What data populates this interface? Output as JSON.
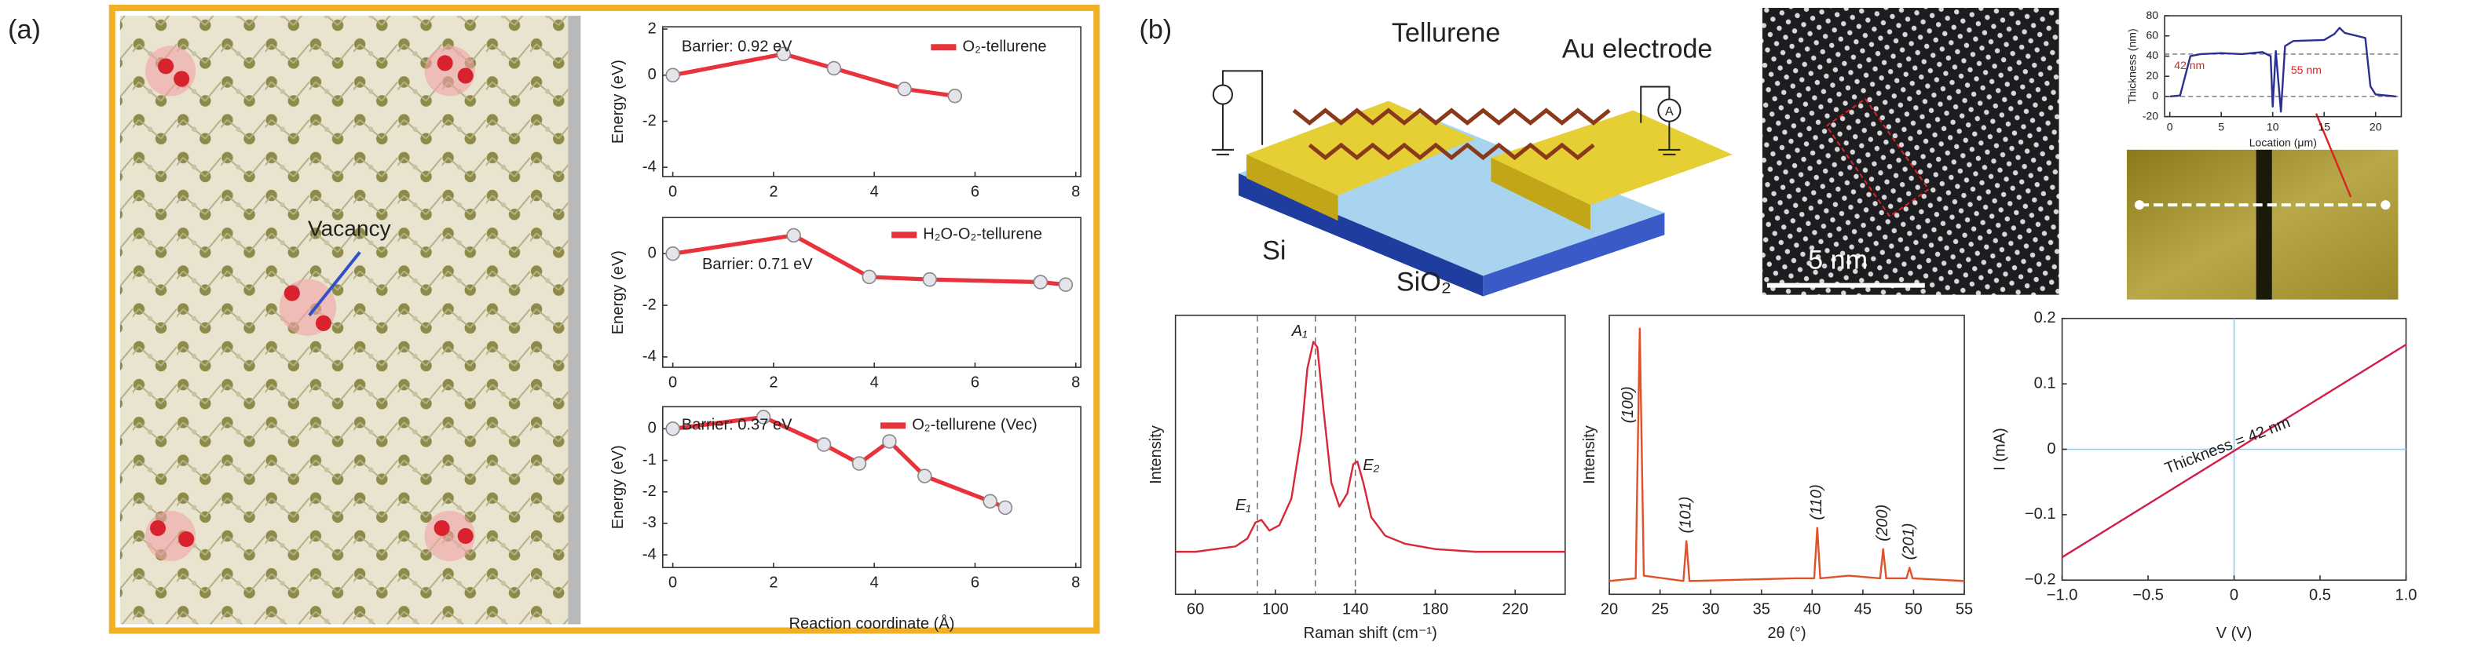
{
  "panel_labels": [
    "(a)",
    "(b)"
  ],
  "illustrations": {
    "vacancy_label": "Vacancy",
    "tellurene_label": "Tellurene",
    "electrode_label": "Au electrode",
    "ammeter_label": "A",
    "si_label": "Si",
    "sio2_label": "SiO₂",
    "scale_bar": "5 nm"
  },
  "chart_data": [
    {
      "type": "line",
      "ylabel": "Energy (eV)",
      "annotation": "Barrier: 0.92 eV",
      "markers": true,
      "xlim": [
        -0.2,
        8.1
      ],
      "ylim": [
        -4.4,
        2.1
      ],
      "xticks": [
        0,
        2,
        4,
        6,
        8
      ],
      "yticks": [
        -4,
        -2,
        0,
        2
      ],
      "series": [
        {
          "name": "O₂-tellurene",
          "color": "#e8323c",
          "x": [
            0,
            2.2,
            3.2,
            4.6,
            5.6
          ],
          "values": [
            0,
            0.92,
            0.3,
            -0.6,
            -0.9
          ]
        }
      ]
    },
    {
      "type": "line",
      "ylabel": "Energy (eV)",
      "annotation": "Barrier: 0.71 eV",
      "markers": true,
      "xlim": [
        -0.2,
        8.1
      ],
      "ylim": [
        -4.4,
        1.4
      ],
      "xticks": [
        0,
        2,
        4,
        6,
        8
      ],
      "yticks": [
        -4,
        -2,
        0
      ],
      "series": [
        {
          "name": "H₂O-O₂-tellurene",
          "color": "#e8323c",
          "x": [
            0,
            2.4,
            3.9,
            5.1,
            7.3,
            7.8
          ],
          "values": [
            0,
            0.71,
            -0.9,
            -1.0,
            -1.1,
            -1.2
          ]
        }
      ]
    },
    {
      "type": "line",
      "ylabel": "Energy (eV)",
      "xlabel": "Reaction coordinate (Å)",
      "annotation": "Barrier: 0.37 eV",
      "markers": true,
      "xlim": [
        -0.2,
        8.1
      ],
      "ylim": [
        -4.4,
        0.7
      ],
      "xticks": [
        0,
        2,
        4,
        6,
        8
      ],
      "yticks": [
        0,
        -1,
        -2,
        -3,
        -4
      ],
      "series": [
        {
          "name": "O₂-tellurene (Vec)",
          "color": "#e8323c",
          "x": [
            0,
            1.8,
            3.0,
            3.7,
            4.3,
            5.0,
            6.3,
            6.6
          ],
          "values": [
            0,
            0.37,
            -0.5,
            -1.1,
            -0.4,
            -1.5,
            -2.3,
            -2.5
          ]
        }
      ]
    },
    {
      "type": "line",
      "ylabel": "Intensity",
      "xlabel": "Raman shift (cm⁻¹)",
      "xlim": [
        50,
        245
      ],
      "ylim": [
        0,
        1.05
      ],
      "xticks": [
        60,
        100,
        140,
        180,
        220
      ],
      "peaks": {
        "labels": [
          "E₁",
          "A₁",
          "E₂"
        ],
        "x": [
          91,
          120,
          140
        ]
      },
      "series": [
        {
          "color": "#d8283a",
          "x": [
            50,
            60,
            70,
            80,
            86,
            90,
            93,
            97,
            102,
            108,
            113,
            116,
            119,
            121,
            124,
            128,
            132,
            136,
            139,
            141,
            144,
            148,
            155,
            165,
            180,
            200,
            220,
            245
          ],
          "values": [
            0.16,
            0.16,
            0.17,
            0.18,
            0.21,
            0.27,
            0.28,
            0.24,
            0.26,
            0.36,
            0.6,
            0.85,
            0.95,
            0.93,
            0.7,
            0.42,
            0.33,
            0.38,
            0.49,
            0.5,
            0.42,
            0.29,
            0.22,
            0.19,
            0.17,
            0.16,
            0.16,
            0.16
          ]
        }
      ]
    },
    {
      "type": "line",
      "ylabel": "Intensity",
      "xlabel": "2θ (°)",
      "xlim": [
        20,
        55
      ],
      "ylim": [
        0,
        1.05
      ],
      "xticks": [
        20,
        25,
        30,
        35,
        40,
        45,
        50,
        55
      ],
      "peaks": {
        "labels": [
          "(100)",
          "(101)",
          "(110)",
          "(200)",
          "(201)"
        ],
        "x": [
          23.0,
          27.6,
          40.5,
          47.0,
          49.6
        ]
      },
      "series": [
        {
          "color": "#e0522a",
          "x": [
            20,
            22.6,
            23.0,
            23.4,
            27.3,
            27.6,
            27.9,
            38.3,
            40.2,
            40.5,
            40.8,
            43.6,
            46.7,
            47.0,
            47.3,
            49.3,
            49.6,
            49.9,
            55
          ],
          "values": [
            0.05,
            0.06,
            1.0,
            0.07,
            0.05,
            0.2,
            0.05,
            0.06,
            0.06,
            0.25,
            0.06,
            0.07,
            0.06,
            0.17,
            0.06,
            0.06,
            0.1,
            0.06,
            0.05
          ]
        }
      ]
    },
    {
      "type": "line",
      "ylabel": "I (mA)",
      "xlabel": "V (V)",
      "annotation": "Thickness = 42 nm",
      "zero_lines": true,
      "xlim": [
        -1,
        1
      ],
      "ylim": [
        -0.2,
        0.2
      ],
      "xticks": [
        {
          "value": -1,
          "label": "−1.0"
        },
        {
          "value": -0.5,
          "label": "−0.5"
        },
        0,
        0.5,
        {
          "value": 1,
          "label": "1.0"
        }
      ],
      "yticks": [
        {
          "value": -0.2,
          "label": "−0.2"
        },
        {
          "value": -0.1,
          "label": "−0.1"
        },
        0,
        0.1,
        0.2
      ],
      "series": [
        {
          "color": "#d21f4a",
          "x": [
            -1,
            1
          ],
          "values": [
            -0.165,
            0.16
          ]
        }
      ]
    },
    {
      "type": "line",
      "ylabel": "Thickness (nm)",
      "xlabel": "Location (μm)",
      "xlim": [
        -0.5,
        22.5
      ],
      "ylim": [
        -20,
        80
      ],
      "xticks": [
        0,
        5,
        10,
        15,
        20
      ],
      "yticks": [
        -20,
        0,
        20,
        40,
        60,
        80
      ],
      "reference_y": [
        42,
        0
      ],
      "notes": [
        "42 nm",
        "55 nm"
      ],
      "series": [
        {
          "color": "#2b2f8f",
          "x": [
            0,
            1,
            2,
            3,
            5,
            7,
            9,
            9.8,
            10,
            10.3,
            10.8,
            11.2,
            12,
            15,
            16,
            16.5,
            17,
            19,
            19.5,
            20,
            22
          ],
          "values": [
            0,
            1,
            40,
            42,
            43,
            42,
            44,
            40,
            -10,
            45,
            -15,
            50,
            55,
            56,
            62,
            68,
            63,
            58,
            10,
            2,
            0
          ]
        }
      ]
    }
  ]
}
